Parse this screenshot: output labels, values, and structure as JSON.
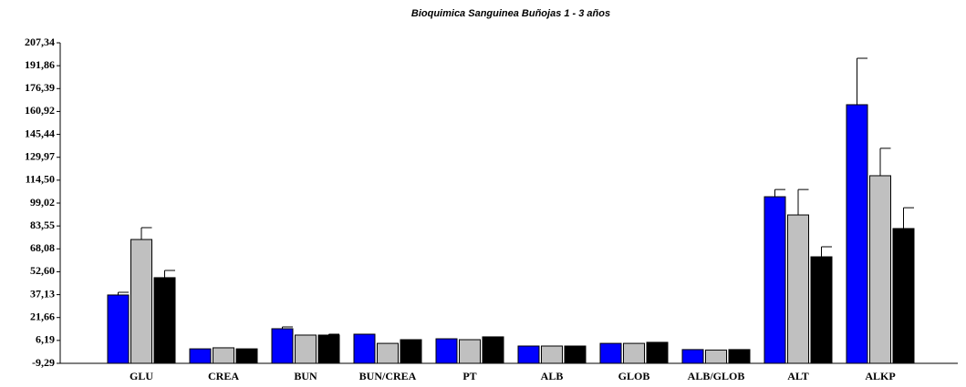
{
  "chart_data": {
    "type": "bar",
    "title": "Bioquimica Sanguinea Buñojas 1 - 3 años",
    "categories": [
      "GLU",
      "CREA",
      "BUN",
      "BUN/CREA",
      "PT",
      "ALB",
      "GLOB",
      "ALB/GLOB",
      "ALT",
      "ALKP"
    ],
    "series": [
      {
        "color": "#0000ff",
        "values": [
          36.9,
          0.5,
          14.1,
          10.4,
          7.3,
          2.4,
          4.2,
          0.0,
          103.3,
          165.5
        ],
        "errors": [
          1.8,
          0,
          1.2,
          0,
          0,
          0,
          0,
          0,
          4.9,
          31.4
        ]
      },
      {
        "color": "#c0c0c0",
        "values": [
          74.4,
          1.2,
          9.8,
          4.2,
          6.7,
          2.4,
          4.2,
          -0.3,
          91.0,
          117.5
        ],
        "errors": [
          8.0,
          0,
          0,
          0,
          0,
          0,
          0,
          0,
          17.2,
          18.5
        ]
      },
      {
        "color": "#000000",
        "values": [
          48.6,
          0.5,
          9.8,
          6.7,
          8.6,
          2.4,
          4.9,
          0.0,
          62.7,
          81.8
        ],
        "errors": [
          4.9,
          0,
          0.6,
          0,
          0,
          0,
          0,
          0,
          6.8,
          14.1
        ]
      }
    ],
    "ylim": [
      -9.29,
      207.34
    ],
    "yticks": [
      {
        "value": -9.29,
        "label": "-9,29"
      },
      {
        "value": 6.19,
        "label": "6,19"
      },
      {
        "value": 21.66,
        "label": "21,66"
      },
      {
        "value": 37.13,
        "label": "37,13"
      },
      {
        "value": 52.6,
        "label": "52,60"
      },
      {
        "value": 68.08,
        "label": "68,08"
      },
      {
        "value": 83.55,
        "label": "83,55"
      },
      {
        "value": 99.02,
        "label": "99,02"
      },
      {
        "value": 114.5,
        "label": "114,50"
      },
      {
        "value": 129.97,
        "label": "129,97"
      },
      {
        "value": 145.44,
        "label": "145,44"
      },
      {
        "value": 160.92,
        "label": "160,92"
      },
      {
        "value": 176.39,
        "label": "176,39"
      },
      {
        "value": 191.86,
        "label": "191,86"
      },
      {
        "value": 207.34,
        "label": "207,34"
      }
    ]
  }
}
